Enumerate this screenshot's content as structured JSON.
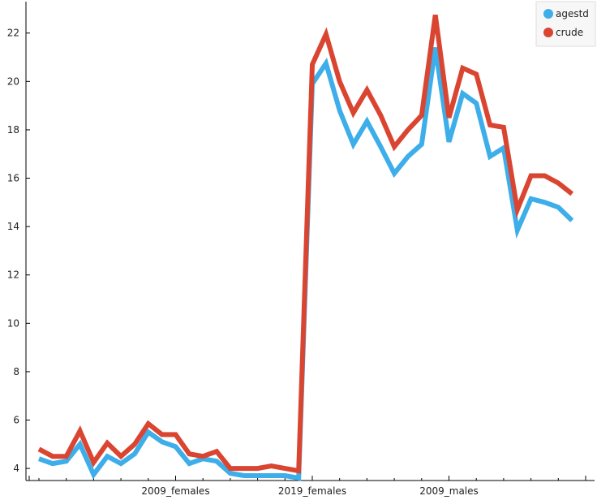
{
  "chart_data": {
    "type": "line",
    "title": "",
    "xlabel": "",
    "ylabel": "",
    "ylim": [
      3.5,
      23.3
    ],
    "yticks": [
      4,
      6,
      8,
      10,
      12,
      14,
      16,
      18,
      20,
      22
    ],
    "xtick_labels": [
      {
        "index": 10,
        "label": "2009_females"
      },
      {
        "index": 20,
        "label": "2019_females"
      },
      {
        "index": 30,
        "label": "2009_males"
      }
    ],
    "grid": false,
    "legend_position": "top-right",
    "series": [
      {
        "name": "agestd",
        "color": "#3daee9",
        "values": [
          4.4,
          4.2,
          4.3,
          5.0,
          3.75,
          4.5,
          4.2,
          4.6,
          5.5,
          5.1,
          4.9,
          4.2,
          4.4,
          4.3,
          3.8,
          3.7,
          3.7,
          3.7,
          3.7,
          3.6,
          19.9,
          20.75,
          18.8,
          17.4,
          18.35,
          17.3,
          16.2,
          16.9,
          17.4,
          21.4,
          17.5,
          19.5,
          19.1,
          16.9,
          17.25,
          13.85,
          15.15,
          15.0,
          14.8,
          14.25
        ]
      },
      {
        "name": "crude",
        "color": "#da4531",
        "values": [
          4.8,
          4.5,
          4.5,
          5.55,
          4.25,
          5.05,
          4.5,
          5.0,
          5.85,
          5.4,
          5.4,
          4.6,
          4.5,
          4.7,
          4.0,
          4.0,
          4.0,
          4.1,
          4.0,
          3.9,
          20.7,
          21.95,
          20.0,
          18.7,
          19.65,
          18.6,
          17.3,
          18.0,
          18.6,
          22.75,
          18.5,
          20.55,
          20.3,
          18.2,
          18.1,
          14.7,
          16.1,
          16.1,
          15.8,
          15.35
        ]
      }
    ]
  }
}
